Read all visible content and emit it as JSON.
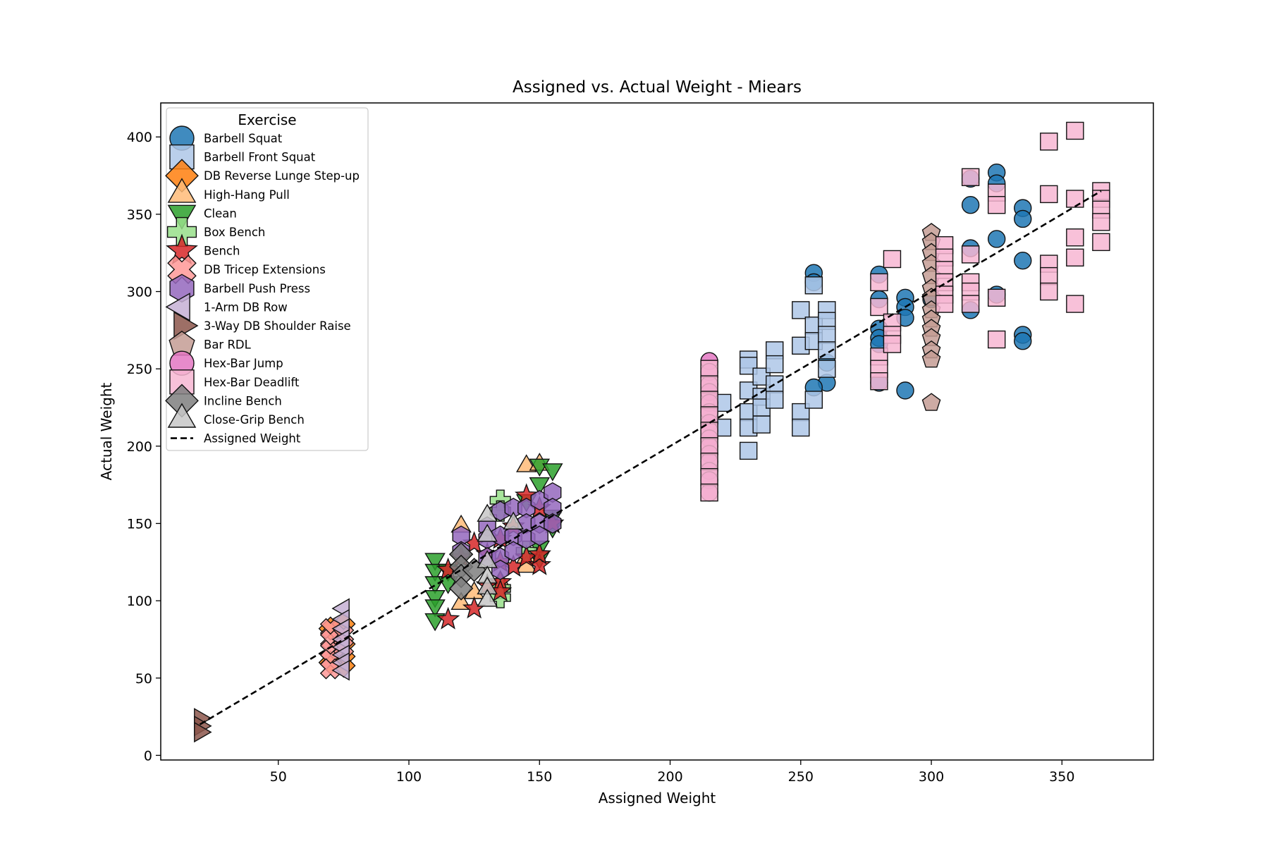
{
  "chart_data": {
    "type": "scatter",
    "title": "Assigned vs. Actual Weight - Miears",
    "xlabel": "Assigned Weight",
    "ylabel": "Actual Weight",
    "xlim": [
      5,
      385
    ],
    "ylim": [
      -3,
      422
    ],
    "xticks": [
      50,
      100,
      150,
      200,
      250,
      300,
      350
    ],
    "yticks": [
      0,
      50,
      100,
      150,
      200,
      250,
      300,
      350,
      400
    ],
    "grid": false,
    "legend": {
      "title": "Exercise",
      "placement": "upper-left"
    },
    "reference_line": {
      "name": "Assigned Weight",
      "x": [
        20,
        365
      ],
      "y": [
        20,
        365
      ]
    },
    "series": [
      {
        "name": "Barbell Squat",
        "color": "#1f77b4",
        "marker": "circle",
        "points": [
          [
            255,
            312
          ],
          [
            255,
            306
          ],
          [
            260,
            254
          ],
          [
            260,
            241
          ],
          [
            255,
            238
          ],
          [
            280,
            311
          ],
          [
            280,
            295
          ],
          [
            280,
            276
          ],
          [
            280,
            270
          ],
          [
            280,
            266
          ],
          [
            280,
            241
          ],
          [
            290,
            296
          ],
          [
            290,
            290
          ],
          [
            290,
            283
          ],
          [
            290,
            236
          ],
          [
            300,
            295
          ],
          [
            315,
            373
          ],
          [
            315,
            356
          ],
          [
            315,
            328
          ],
          [
            315,
            288
          ],
          [
            325,
            377
          ],
          [
            325,
            370
          ],
          [
            325,
            334
          ],
          [
            325,
            298
          ],
          [
            335,
            354
          ],
          [
            335,
            347
          ],
          [
            335,
            320
          ],
          [
            335,
            272
          ],
          [
            335,
            268
          ]
        ]
      },
      {
        "name": "Barbell Front Squat",
        "color": "#aec7e8",
        "marker": "square",
        "points": [
          [
            220,
            228
          ],
          [
            220,
            212
          ],
          [
            230,
            256
          ],
          [
            230,
            252
          ],
          [
            230,
            236
          ],
          [
            230,
            222
          ],
          [
            230,
            212
          ],
          [
            230,
            197
          ],
          [
            235,
            245
          ],
          [
            235,
            232
          ],
          [
            235,
            225
          ],
          [
            235,
            214
          ],
          [
            240,
            262
          ],
          [
            240,
            253
          ],
          [
            240,
            240
          ],
          [
            240,
            230
          ],
          [
            250,
            288
          ],
          [
            250,
            265
          ],
          [
            250,
            222
          ],
          [
            250,
            212
          ],
          [
            255,
            304
          ],
          [
            255,
            278
          ],
          [
            255,
            268
          ],
          [
            255,
            230
          ],
          [
            260,
            288
          ],
          [
            260,
            281
          ],
          [
            260,
            272
          ],
          [
            260,
            262
          ],
          [
            260,
            250
          ]
        ]
      },
      {
        "name": "DB Reverse Lunge Step-up",
        "color": "#ff7f0e",
        "marker": "diamond",
        "points": [
          [
            70,
            82
          ],
          [
            75,
            85
          ],
          [
            75,
            64
          ],
          [
            75,
            58
          ],
          [
            70,
            60
          ],
          [
            75,
            72
          ]
        ]
      },
      {
        "name": "High-Hang Pull",
        "color": "#ffbb78",
        "marker": "triangle-up",
        "points": [
          [
            120,
            148
          ],
          [
            120,
            98
          ],
          [
            125,
            105
          ],
          [
            135,
            112
          ],
          [
            145,
            187
          ],
          [
            145,
            128
          ],
          [
            145,
            122
          ],
          [
            150,
            188
          ]
        ]
      },
      {
        "name": "Clean",
        "color": "#2ca02c",
        "marker": "triangle-down",
        "points": [
          [
            110,
            127
          ],
          [
            110,
            120
          ],
          [
            110,
            112
          ],
          [
            110,
            103
          ],
          [
            110,
            97
          ],
          [
            110,
            88
          ],
          [
            115,
            120
          ],
          [
            115,
            112
          ],
          [
            145,
            165
          ],
          [
            150,
            188
          ],
          [
            150,
            176
          ],
          [
            150,
            135
          ],
          [
            150,
            128
          ],
          [
            155,
            185
          ],
          [
            155,
            155
          ],
          [
            155,
            148
          ]
        ]
      },
      {
        "name": "Box Bench",
        "color": "#98df8a",
        "marker": "plus",
        "points": [
          [
            135,
            165
          ],
          [
            135,
            158
          ],
          [
            135,
            108
          ],
          [
            135,
            102
          ],
          [
            145,
            132
          ]
        ]
      },
      {
        "name": "Bench",
        "color": "#d62728",
        "marker": "star",
        "points": [
          [
            115,
            88
          ],
          [
            115,
            120
          ],
          [
            120,
            128
          ],
          [
            125,
            137
          ],
          [
            125,
            95
          ],
          [
            130,
            130
          ],
          [
            130,
            110
          ],
          [
            135,
            140
          ],
          [
            135,
            125
          ],
          [
            135,
            112
          ],
          [
            135,
            106
          ],
          [
            140,
            148
          ],
          [
            140,
            122
          ],
          [
            145,
            168
          ],
          [
            145,
            128
          ],
          [
            150,
            160
          ],
          [
            150,
            123
          ],
          [
            150,
            130
          ],
          [
            155,
            150
          ]
        ]
      },
      {
        "name": "DB Tricep Extensions",
        "color": "#ff9896",
        "marker": "x",
        "points": [
          [
            70,
            82
          ],
          [
            70,
            75
          ],
          [
            70,
            68
          ],
          [
            70,
            62
          ],
          [
            70,
            56
          ],
          [
            75,
            78
          ],
          [
            75,
            70
          ]
        ]
      },
      {
        "name": "Barbell Push Press",
        "color": "#9467bd",
        "marker": "hexagon",
        "points": [
          [
            120,
            142
          ],
          [
            120,
            132
          ],
          [
            130,
            148
          ],
          [
            130,
            140
          ],
          [
            130,
            128
          ],
          [
            135,
            158
          ],
          [
            135,
            142
          ],
          [
            135,
            128
          ],
          [
            135,
            120
          ],
          [
            140,
            160
          ],
          [
            140,
            142
          ],
          [
            140,
            132
          ],
          [
            145,
            160
          ],
          [
            145,
            150
          ],
          [
            145,
            140
          ],
          [
            150,
            165
          ],
          [
            150,
            150
          ],
          [
            150,
            142
          ],
          [
            155,
            170
          ],
          [
            155,
            160
          ],
          [
            155,
            150
          ]
        ]
      },
      {
        "name": "1-Arm DB Row",
        "color": "#c5b0d5",
        "marker": "triangle-left",
        "points": [
          [
            75,
            95
          ],
          [
            75,
            88
          ],
          [
            75,
            82
          ],
          [
            75,
            75
          ],
          [
            75,
            70
          ],
          [
            75,
            65
          ],
          [
            75,
            60
          ],
          [
            75,
            55
          ]
        ]
      },
      {
        "name": "3-Way DB Shoulder Raise",
        "color": "#8c564b",
        "marker": "triangle-right",
        "points": [
          [
            20,
            24
          ],
          [
            20,
            19
          ],
          [
            20,
            15
          ]
        ]
      },
      {
        "name": "Bar RDL",
        "color": "#c49c94",
        "marker": "pentagon",
        "points": [
          [
            300,
            338
          ],
          [
            300,
            332
          ],
          [
            300,
            325
          ],
          [
            300,
            318
          ],
          [
            300,
            310
          ],
          [
            300,
            302
          ],
          [
            300,
            296
          ],
          [
            300,
            288
          ],
          [
            300,
            282
          ],
          [
            300,
            276
          ],
          [
            300,
            270
          ],
          [
            300,
            262
          ],
          [
            300,
            256
          ],
          [
            300,
            228
          ]
        ]
      },
      {
        "name": "Hex-Bar Jump",
        "color": "#e377c2",
        "marker": "circle",
        "points": [
          [
            215,
            255
          ],
          [
            215,
            248
          ],
          [
            215,
            240
          ],
          [
            215,
            235
          ],
          [
            215,
            228
          ],
          [
            215,
            222
          ],
          [
            215,
            215
          ],
          [
            215,
            210
          ],
          [
            215,
            205
          ],
          [
            215,
            200
          ],
          [
            215,
            195
          ],
          [
            215,
            190
          ],
          [
            215,
            184
          ],
          [
            215,
            178
          ],
          [
            215,
            170
          ]
        ]
      },
      {
        "name": "Hex-Bar Deadlift",
        "color": "#f7b6d2",
        "marker": "square",
        "points": [
          [
            215,
            250
          ],
          [
            215,
            240
          ],
          [
            215,
            230
          ],
          [
            215,
            220
          ],
          [
            215,
            210
          ],
          [
            215,
            200
          ],
          [
            215,
            190
          ],
          [
            215,
            180
          ],
          [
            215,
            170
          ],
          [
            280,
            306
          ],
          [
            280,
            290
          ],
          [
            280,
            258
          ],
          [
            280,
            250
          ],
          [
            280,
            242
          ],
          [
            285,
            321
          ],
          [
            285,
            280
          ],
          [
            285,
            272
          ],
          [
            285,
            266
          ],
          [
            305,
            330
          ],
          [
            305,
            322
          ],
          [
            305,
            314
          ],
          [
            305,
            306
          ],
          [
            305,
            298
          ],
          [
            305,
            292
          ],
          [
            315,
            374
          ],
          [
            315,
            324
          ],
          [
            315,
            306
          ],
          [
            315,
            300
          ],
          [
            315,
            292
          ],
          [
            325,
            364
          ],
          [
            325,
            356
          ],
          [
            325,
            296
          ],
          [
            325,
            269
          ],
          [
            345,
            397
          ],
          [
            345,
            363
          ],
          [
            345,
            318
          ],
          [
            345,
            310
          ],
          [
            345,
            300
          ],
          [
            355,
            404
          ],
          [
            355,
            360
          ],
          [
            355,
            335
          ],
          [
            355,
            322
          ],
          [
            355,
            292
          ],
          [
            365,
            365
          ],
          [
            365,
            360
          ],
          [
            365,
            353
          ],
          [
            365,
            345
          ],
          [
            365,
            332
          ]
        ]
      },
      {
        "name": "Incline Bench",
        "color": "#7f7f7f",
        "marker": "diamond",
        "points": [
          [
            120,
            130
          ],
          [
            120,
            122
          ],
          [
            120,
            116
          ],
          [
            120,
            108
          ],
          [
            125,
            120
          ]
        ]
      },
      {
        "name": "Close-Grip Bench",
        "color": "#c7c7c7",
        "marker": "triangle-up",
        "points": [
          [
            130,
            155
          ],
          [
            130,
            142
          ],
          [
            130,
            125
          ],
          [
            130,
            115
          ],
          [
            130,
            108
          ],
          [
            130,
            100
          ],
          [
            140,
            150
          ]
        ]
      }
    ]
  }
}
